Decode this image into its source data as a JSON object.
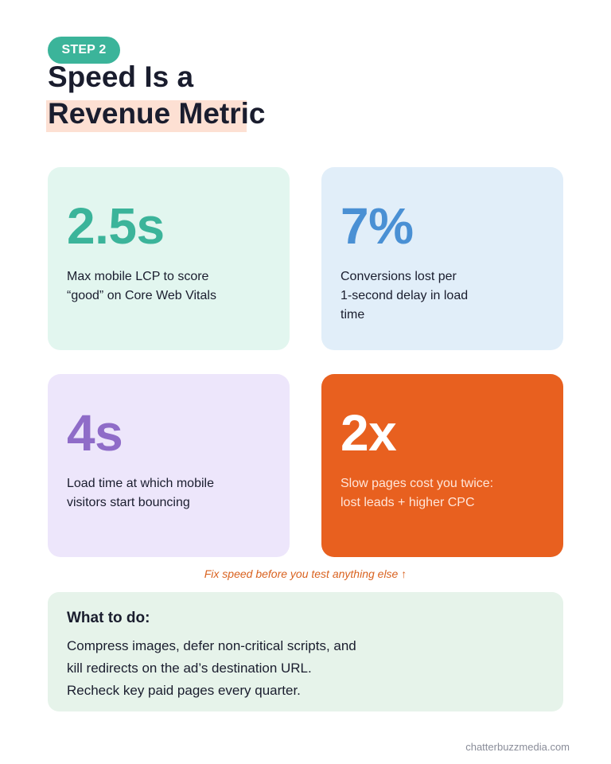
{
  "header": {
    "step_label": "STEP 2",
    "title_line1": "Speed Is a",
    "title_line2": "Revenue Metric"
  },
  "cards": [
    {
      "stat": "2.5s",
      "desc_line1": "Max mobile LCP to score",
      "desc_line2": "“good” on Core Web Vitals",
      "accent": "#3bb49a"
    },
    {
      "stat": "7%",
      "desc_line1": "Conversions lost per",
      "desc_line2": "1-second delay in load",
      "desc_line3": "time",
      "accent": "#4a90d4"
    },
    {
      "stat": "4s",
      "desc_line1": "Load time at which mobile",
      "desc_line2": "visitors start bouncing",
      "accent": "#8f6cc8"
    },
    {
      "stat": "2x",
      "desc_line1": "Slow pages cost you twice:",
      "desc_line2": "lost leads + higher CPC",
      "accent": "#e8601f"
    }
  ],
  "note": "Fix speed before you test anything else ↑",
  "todo": {
    "title": "What to do:",
    "line1": "Compress images, defer non-critical scripts, and",
    "line2": "kill redirects on the ad’s destination URL.",
    "line3": "Recheck key paid pages every quarter."
  },
  "footer": {
    "site": "chatterbuzzmedia.com"
  }
}
